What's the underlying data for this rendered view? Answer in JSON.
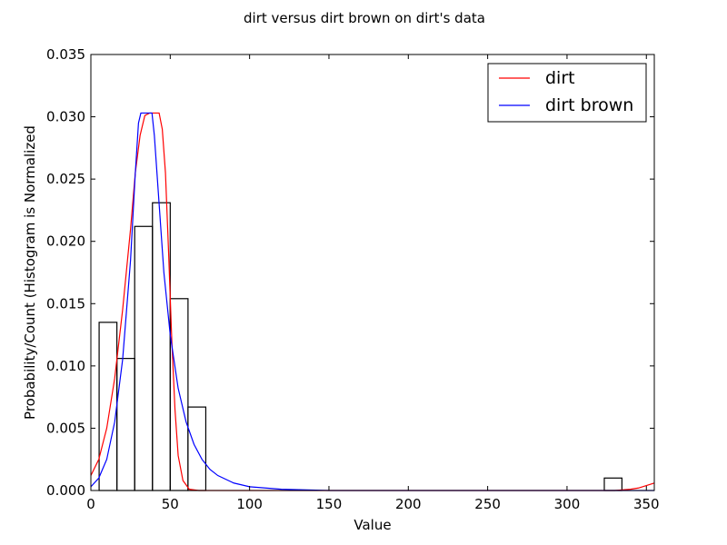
{
  "chart_data": {
    "type": "histogram+line",
    "title": "dirt versus dirt brown on dirt's data",
    "xlabel": "Value",
    "ylabel": "Probability/Count (Histogram is Normalized",
    "xlim": [
      0,
      355
    ],
    "ylim": [
      0,
      0.035
    ],
    "xticks": [
      0,
      50,
      100,
      150,
      200,
      250,
      300,
      350
    ],
    "yticks": [
      "0.000",
      "0.005",
      "0.010",
      "0.015",
      "0.020",
      "0.025",
      "0.030",
      "0.035"
    ],
    "grid": false,
    "legend_position": "top-right",
    "histogram": {
      "bins": [
        {
          "x0": 5.2,
          "x1": 16.4,
          "value": 0.0135
        },
        {
          "x0": 16.4,
          "x1": 27.6,
          "value": 0.0106
        },
        {
          "x0": 27.6,
          "x1": 38.8,
          "value": 0.0212
        },
        {
          "x0": 38.8,
          "x1": 50.0,
          "value": 0.0231
        },
        {
          "x0": 50.0,
          "x1": 61.2,
          "value": 0.0154
        },
        {
          "x0": 61.2,
          "x1": 72.4,
          "value": 0.0067
        },
        {
          "x0": 323.5,
          "x1": 334.6,
          "value": 0.001
        }
      ]
    },
    "series": [
      {
        "name": "dirt",
        "color": "#ff0000",
        "points": [
          [
            0,
            0.0012
          ],
          [
            5,
            0.0025
          ],
          [
            10,
            0.005
          ],
          [
            15,
            0.009
          ],
          [
            20,
            0.0145
          ],
          [
            25,
            0.021
          ],
          [
            28,
            0.0255
          ],
          [
            31,
            0.0285
          ],
          [
            34,
            0.0301
          ],
          [
            37,
            0.0303
          ],
          [
            43,
            0.0303
          ],
          [
            45,
            0.029
          ],
          [
            47,
            0.0255
          ],
          [
            49,
            0.019
          ],
          [
            51,
            0.012
          ],
          [
            53,
            0.0065
          ],
          [
            55,
            0.0028
          ],
          [
            58,
            0.0008
          ],
          [
            62,
            0.0001
          ],
          [
            68,
            0
          ],
          [
            330,
            0
          ],
          [
            340,
            0.0001
          ],
          [
            345,
            0.0002
          ],
          [
            350,
            0.0004
          ],
          [
            355,
            0.0006
          ]
        ]
      },
      {
        "name": "dirt brown",
        "color": "#0000ff",
        "points": [
          [
            0,
            0.0003
          ],
          [
            5,
            0.001
          ],
          [
            10,
            0.0025
          ],
          [
            15,
            0.0055
          ],
          [
            20,
            0.0105
          ],
          [
            25,
            0.0185
          ],
          [
            28,
            0.0255
          ],
          [
            30,
            0.0295
          ],
          [
            31.5,
            0.0303
          ],
          [
            38.5,
            0.0303
          ],
          [
            40,
            0.0285
          ],
          [
            43,
            0.023
          ],
          [
            46,
            0.0175
          ],
          [
            50,
            0.0125
          ],
          [
            55,
            0.0082
          ],
          [
            60,
            0.0055
          ],
          [
            65,
            0.0037
          ],
          [
            70,
            0.0025
          ],
          [
            75,
            0.0017
          ],
          [
            80,
            0.0012
          ],
          [
            90,
            0.0006
          ],
          [
            100,
            0.0003
          ],
          [
            120,
            0.0001
          ],
          [
            150,
            0
          ],
          [
            355,
            0
          ]
        ]
      }
    ]
  }
}
